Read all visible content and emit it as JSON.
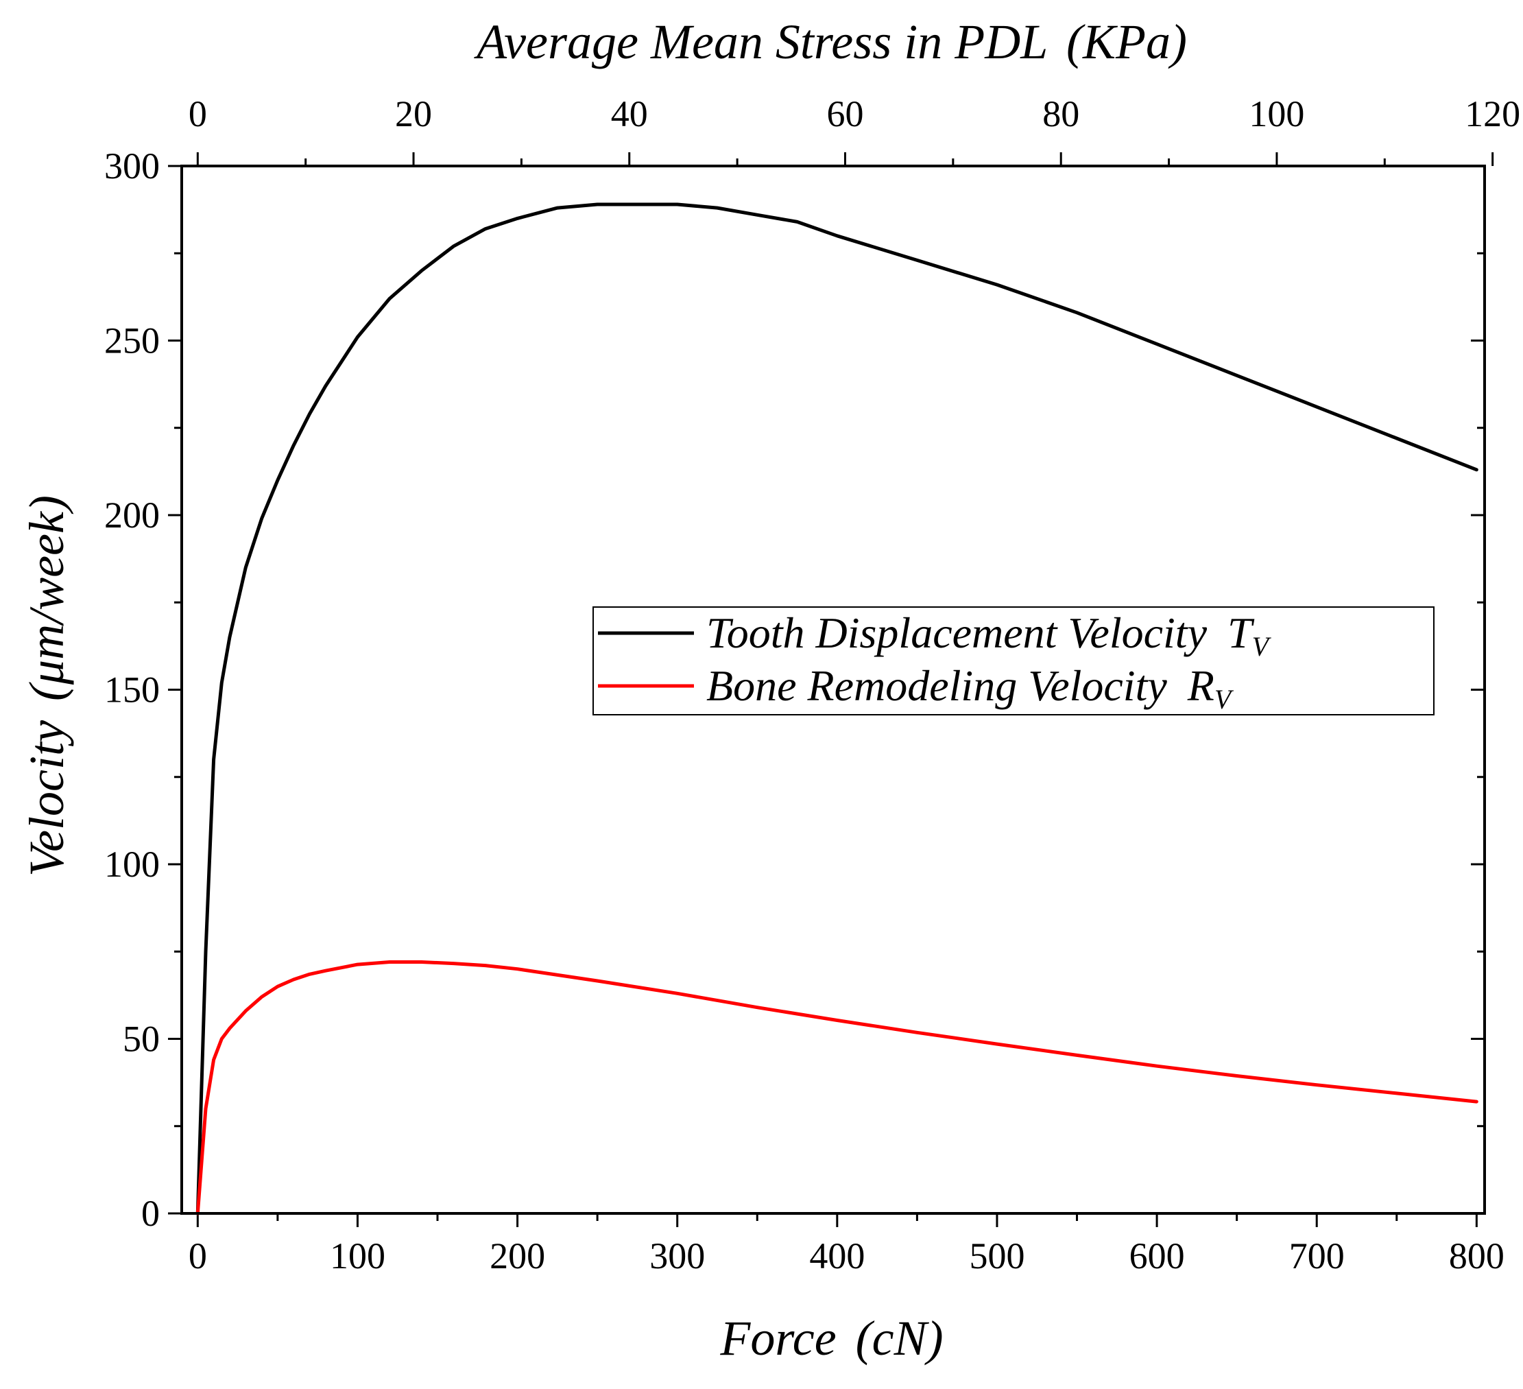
{
  "chart_data": {
    "type": "line",
    "title": "",
    "xlabel": "Force",
    "xlabel_unit": "(cN)",
    "ylabel": "Velocity",
    "ylabel_unit": "(μm/week)",
    "top_xlabel": "Average Mean Stress in PDL",
    "top_xlabel_unit": "(KPa)",
    "xlim": [
      -10,
      805
    ],
    "ylim": [
      0,
      300
    ],
    "x_ticks": [
      0,
      100,
      200,
      300,
      400,
      500,
      600,
      700,
      800
    ],
    "x_tick_labels": [
      "0",
      "100",
      "200",
      "300",
      "400",
      "500",
      "600",
      "700",
      "800"
    ],
    "y_ticks": [
      0,
      50,
      100,
      150,
      200,
      250,
      300
    ],
    "y_tick_labels": [
      "0",
      "50",
      "100",
      "150",
      "200",
      "250",
      "300"
    ],
    "top_x_ticks": [
      0,
      20,
      40,
      60,
      80,
      100,
      120
    ],
    "top_x_tick_labels": [
      "0",
      "20",
      "40",
      "60",
      "80",
      "100",
      "120"
    ],
    "top_xlim": [
      0,
      120
    ],
    "legend_position": "center-right",
    "series": [
      {
        "name": "Tooth Displacement Velocity",
        "subscript_main": "T",
        "subscript": "V",
        "color": "#000000",
        "x": [
          0,
          5,
          10,
          15,
          20,
          30,
          40,
          50,
          60,
          70,
          80,
          100,
          120,
          140,
          160,
          180,
          200,
          225,
          250,
          275,
          300,
          325,
          350,
          375,
          400,
          450,
          500,
          550,
          600,
          650,
          700,
          750,
          800
        ],
        "y": [
          0,
          75,
          130,
          152,
          165,
          185,
          199,
          210,
          220,
          229,
          237,
          251,
          262,
          270,
          277,
          282,
          285,
          288,
          289,
          289,
          289,
          288,
          286,
          284,
          280,
          273,
          266,
          258,
          249,
          240,
          231,
          222,
          213
        ]
      },
      {
        "name": "Bone Remodeling Velocity",
        "subscript_main": "R",
        "subscript": "V",
        "color": "#ff0000",
        "x": [
          0,
          5,
          10,
          15,
          20,
          30,
          40,
          50,
          60,
          70,
          80,
          100,
          120,
          140,
          160,
          180,
          200,
          250,
          300,
          350,
          400,
          450,
          500,
          550,
          600,
          650,
          700,
          750,
          800
        ],
        "y": [
          0,
          30,
          44,
          50,
          53,
          58,
          62,
          65,
          67,
          68.5,
          69.5,
          71.3,
          72,
          72,
          71.6,
          71,
          70,
          66.6,
          63,
          59,
          55.3,
          51.8,
          48.5,
          45.3,
          42.2,
          39.4,
          36.8,
          34.4,
          32
        ]
      }
    ]
  }
}
